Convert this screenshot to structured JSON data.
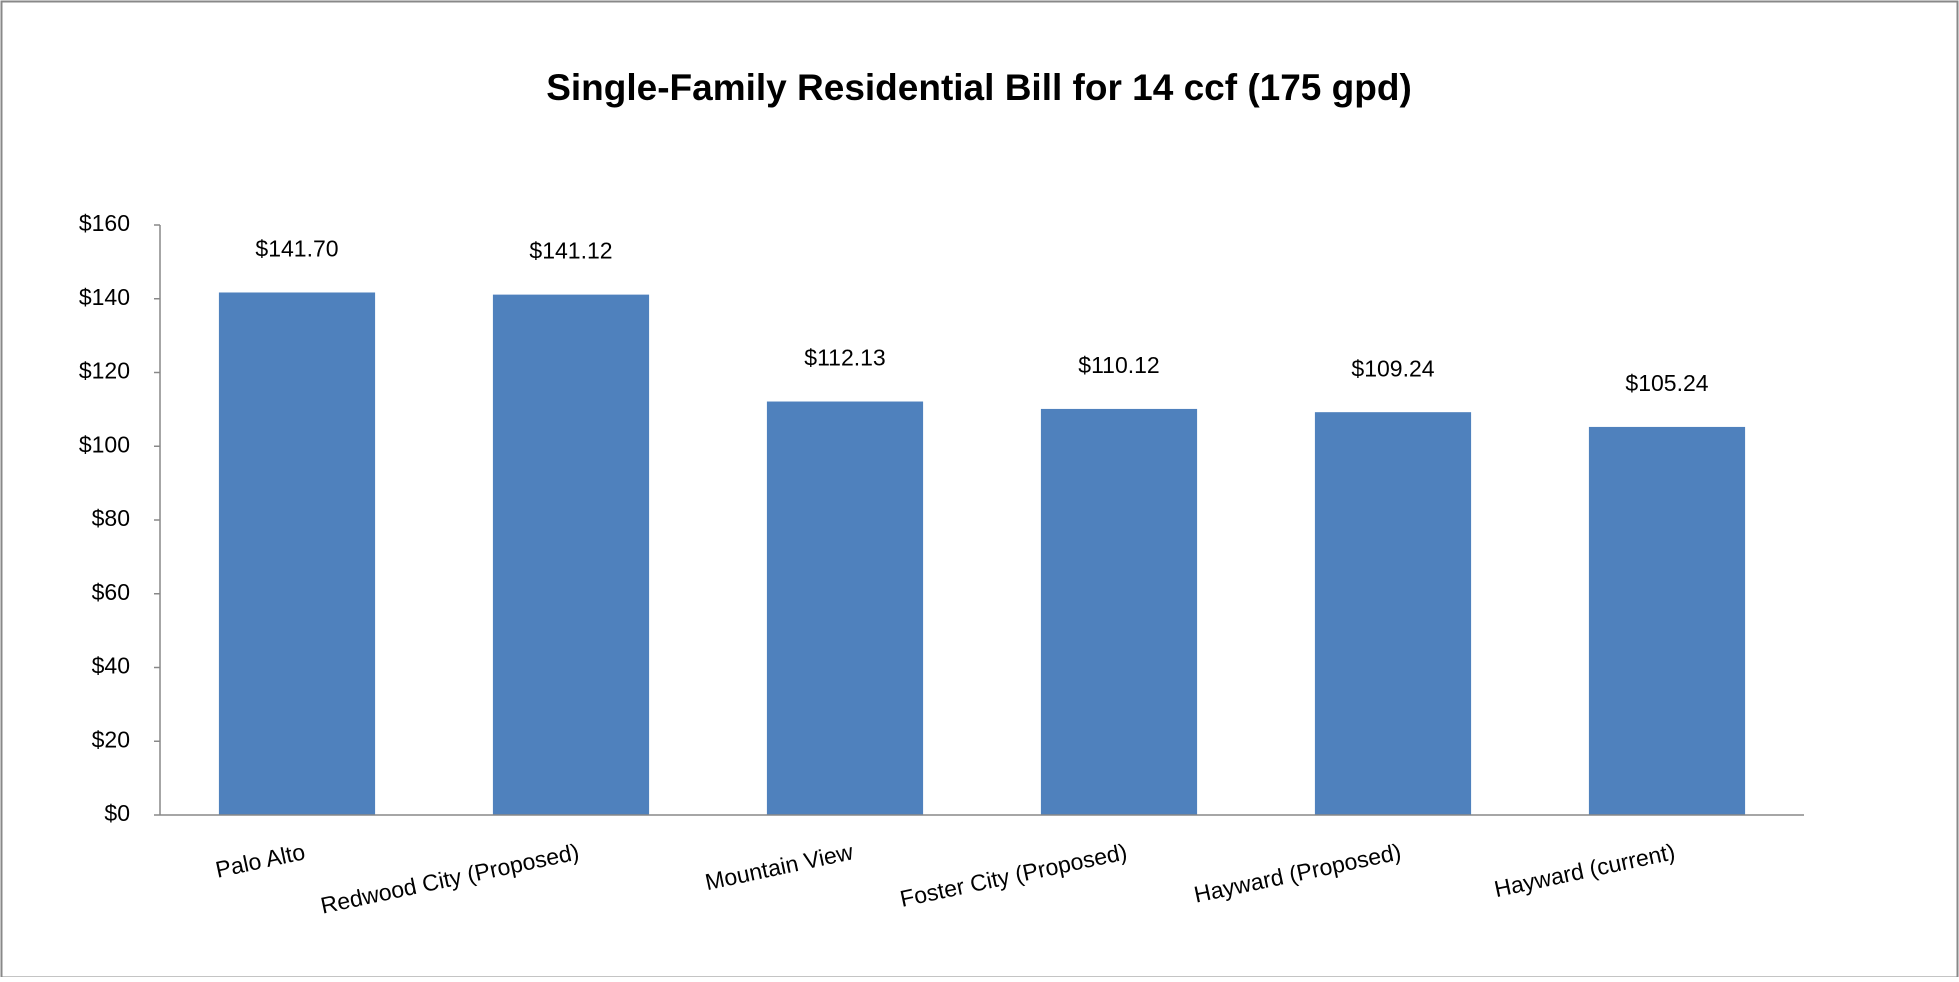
{
  "chart_data": {
    "type": "bar",
    "title": "Single-Family Residential Bill for 14 ccf (175 gpd)",
    "categories": [
      "Palo Alto",
      "Redwood City (Proposed)",
      "Mountain View",
      "Foster City (Proposed)",
      "Hayward (Proposed)",
      "Hayward (current)"
    ],
    "values": [
      141.7,
      141.12,
      112.13,
      110.12,
      109.24,
      105.24
    ],
    "value_labels": [
      "$141.70",
      "$141.12",
      "$112.13",
      "$110.12",
      "$109.24",
      "$105.24"
    ],
    "color": "#4f81bd",
    "ylim": [
      0,
      160
    ],
    "yticks": [
      {
        "value": 0,
        "label": "$0"
      },
      {
        "value": 20,
        "label": "$20"
      },
      {
        "value": 40,
        "label": "$40"
      },
      {
        "value": 60,
        "label": "$60"
      },
      {
        "value": 80,
        "label": "$80"
      },
      {
        "value": 100,
        "label": "$100"
      },
      {
        "value": 120,
        "label": "$120"
      },
      {
        "value": 140,
        "label": "$140"
      },
      {
        "value": 160,
        "label": "$160"
      }
    ],
    "grid": false
  }
}
